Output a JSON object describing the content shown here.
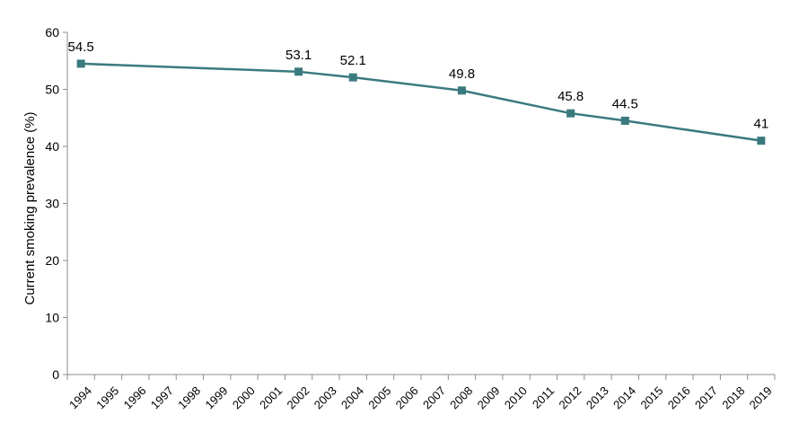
{
  "chart_data": {
    "type": "line",
    "title": "",
    "xlabel": "",
    "ylabel": "Current smoking prevalence (%)",
    "ylim": [
      0,
      60
    ],
    "yticks": [
      0,
      10,
      20,
      30,
      40,
      50,
      60
    ],
    "categories": [
      "1994",
      "1995",
      "1996",
      "1997",
      "1998",
      "1999",
      "2000",
      "2001",
      "2002",
      "2003",
      "2004",
      "2005",
      "2006",
      "2007",
      "2008",
      "2009",
      "2010",
      "2011",
      "2012",
      "2013",
      "2014",
      "2015",
      "2016",
      "2017",
      "2018",
      "2019"
    ],
    "series": [
      {
        "x": [
          "1994",
          "2002",
          "2004",
          "2008",
          "2012",
          "2014",
          "2019"
        ],
        "values": [
          54.5,
          53.1,
          52.1,
          49.8,
          45.8,
          44.5,
          41
        ],
        "labels": [
          "54.5",
          "53.1",
          "52.1",
          "49.8",
          "45.8",
          "44.5",
          "41"
        ],
        "color": "#3a7a7f",
        "marker": "square"
      }
    ],
    "grid": false,
    "legend": "none"
  }
}
